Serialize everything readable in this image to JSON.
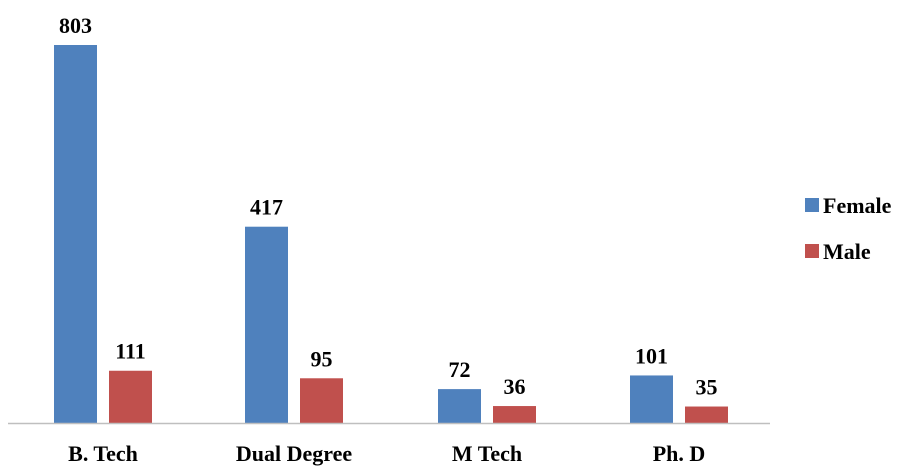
{
  "chart_data": {
    "type": "bar",
    "categories": [
      "B. Tech",
      "Dual Degree",
      "M Tech",
      "Ph. D"
    ],
    "series": [
      {
        "name": "Female",
        "color": "#4F81BD",
        "values": [
          803,
          417,
          72,
          101
        ]
      },
      {
        "name": "Male",
        "color": "#C0504D",
        "values": [
          111,
          95,
          36,
          35
        ]
      }
    ],
    "title": "",
    "xlabel": "",
    "ylabel": "",
    "ylim": [
      0,
      803
    ],
    "grid": false,
    "legend_position": "right"
  }
}
